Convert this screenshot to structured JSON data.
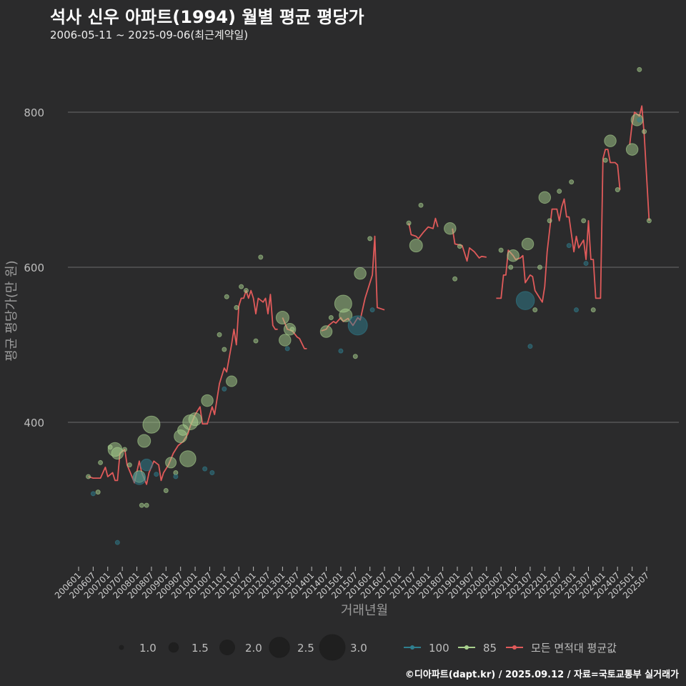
{
  "title": "석사 신우 아파트(1994) 월별 평균 평당가",
  "subtitle": "2006-05-11 ~ 2025-09-06(최근계약일)",
  "caption": "©디아파트(dapt.kr) / 2025.09.12 / 자료=국토교통부 실거래가",
  "colors": {
    "background": "#2b2b2c",
    "grid": "#6b6b6b",
    "series_100": "#2f7f8f",
    "series_85": "#a8d08d",
    "series_avg": "#e05a5a"
  },
  "chart_data": {
    "type": "line+scatter",
    "xlabel": "거래년월",
    "ylabel": "평균 평당가(만 원)",
    "ylim": [
      225,
      860
    ],
    "yticks": [
      400,
      600,
      800
    ],
    "xlim": [
      "2006-01",
      "2025-12"
    ],
    "xticks": [
      "200601",
      "200607",
      "200701",
      "200707",
      "200801",
      "200807",
      "200901",
      "200907",
      "201001",
      "201007",
      "201101",
      "201107",
      "201201",
      "201207",
      "201301",
      "201307",
      "201401",
      "201407",
      "201501",
      "201507",
      "201601",
      "201607",
      "201701",
      "201707",
      "201801",
      "201807",
      "201901",
      "201907",
      "202001",
      "202007",
      "202101",
      "202107",
      "202201",
      "202207",
      "202301",
      "202307",
      "202401",
      "202407",
      "202501",
      "202507"
    ],
    "size_legend": {
      "title": "",
      "values": [
        "1.0",
        "1.5",
        "2.0",
        "2.5",
        "3.0"
      ]
    },
    "line_legend": [
      "100",
      "85",
      "모든 면적대 평균값"
    ],
    "series": [
      {
        "name": "모든 면적대 평균값",
        "type": "line",
        "color_key": "series_avg",
        "segments": [
          [
            [
              "2006-05",
              330
            ],
            [
              "2006-07",
              328
            ],
            [
              "2006-10",
              328
            ],
            [
              "2006-12",
              342
            ],
            [
              "2007-01",
              330
            ],
            [
              "2007-03",
              335
            ],
            [
              "2007-04",
              325
            ],
            [
              "2007-05",
              325
            ],
            [
              "2007-06",
              360
            ],
            [
              "2007-08",
              365
            ],
            [
              "2007-09",
              345
            ],
            [
              "2007-11",
              330
            ],
            [
              "2007-12",
              322
            ],
            [
              "2008-02",
              350
            ],
            [
              "2008-03",
              335
            ],
            [
              "2008-05",
              320
            ],
            [
              "2008-06",
              335
            ],
            [
              "2008-08",
              350
            ],
            [
              "2008-10",
              345
            ],
            [
              "2008-11",
              325
            ],
            [
              "2008-12",
              335
            ],
            [
              "2009-02",
              345
            ],
            [
              "2009-04",
              360
            ],
            [
              "2009-06",
              370
            ],
            [
              "2009-08",
              375
            ],
            [
              "2009-10",
              385
            ],
            [
              "2009-11",
              395
            ],
            [
              "2010-01",
              410
            ],
            [
              "2010-03",
              420
            ],
            [
              "2010-04",
              398
            ],
            [
              "2010-06",
              398
            ],
            [
              "2010-08",
              420
            ],
            [
              "2010-09",
              410
            ],
            [
              "2010-11",
              450
            ],
            [
              "2011-01",
              470
            ],
            [
              "2011-02",
              465
            ],
            [
              "2011-04",
              500
            ],
            [
              "2011-05",
              520
            ],
            [
              "2011-06",
              500
            ],
            [
              "2011-07",
              550
            ],
            [
              "2011-08",
              560
            ],
            [
              "2011-09",
              560
            ],
            [
              "2011-10",
              570
            ],
            [
              "2011-11",
              560
            ],
            [
              "2011-12",
              570
            ],
            [
              "2012-01",
              560
            ],
            [
              "2012-02",
              540
            ],
            [
              "2012-03",
              560
            ],
            [
              "2012-05",
              555
            ],
            [
              "2012-06",
              560
            ],
            [
              "2012-07",
              540
            ],
            [
              "2012-08",
              565
            ],
            [
              "2012-09",
              525
            ],
            [
              "2012-10",
              520
            ],
            [
              "2012-11",
              520
            ]
          ],
          [
            [
              "2013-01",
              535
            ],
            [
              "2013-03",
              520
            ],
            [
              "2013-05",
              518
            ],
            [
              "2013-07",
              510
            ],
            [
              "2013-08",
              508
            ],
            [
              "2013-10",
              495
            ],
            [
              "2013-11",
              495
            ]
          ],
          [
            [
              "2014-05",
              518
            ],
            [
              "2014-07",
              520
            ],
            [
              "2014-08",
              525
            ],
            [
              "2014-10",
              530
            ],
            [
              "2014-11",
              528
            ],
            [
              "2015-01",
              535
            ],
            [
              "2015-02",
              530
            ],
            [
              "2015-04",
              534
            ],
            [
              "2015-06",
              525
            ],
            [
              "2015-08",
              535
            ],
            [
              "2015-09",
              532
            ],
            [
              "2015-11",
              560
            ],
            [
              "2016-01",
              580
            ],
            [
              "2016-02",
              590
            ],
            [
              "2016-03",
              640
            ],
            [
              "2016-04",
              548
            ],
            [
              "2016-07",
              545
            ]
          ],
          [
            [
              "2017-05",
              657
            ],
            [
              "2017-06",
              642
            ],
            [
              "2017-08",
              640
            ],
            [
              "2017-09",
              637
            ],
            [
              "2017-11",
              645
            ],
            [
              "2018-01",
              652
            ],
            [
              "2018-03",
              650
            ],
            [
              "2018-04",
              663
            ],
            [
              "2018-05",
              652
            ]
          ],
          [
            [
              "2018-11",
              650
            ],
            [
              "2018-12",
              630
            ],
            [
              "2019-03",
              628
            ],
            [
              "2019-05",
              608
            ],
            [
              "2019-06",
              625
            ],
            [
              "2019-08",
              620
            ],
            [
              "2019-10",
              612
            ],
            [
              "2019-11",
              614
            ],
            [
              "2020-01",
              613
            ]
          ],
          [
            [
              "2020-05",
              560
            ],
            [
              "2020-07",
              560
            ],
            [
              "2020-08",
              590
            ],
            [
              "2020-09",
              590
            ],
            [
              "2020-10",
              622
            ],
            [
              "2020-12",
              615
            ],
            [
              "2021-01",
              610
            ],
            [
              "2021-03",
              612
            ],
            [
              "2021-04",
              615
            ],
            [
              "2021-05",
              580
            ],
            [
              "2021-07",
              590
            ],
            [
              "2021-08",
              588
            ],
            [
              "2021-09",
              570
            ],
            [
              "2021-10",
              565
            ],
            [
              "2021-12",
              555
            ],
            [
              "2022-01",
              575
            ],
            [
              "2022-02",
              620
            ],
            [
              "2022-04",
              675
            ],
            [
              "2022-06",
              675
            ],
            [
              "2022-07",
              660
            ],
            [
              "2022-08",
              678
            ],
            [
              "2022-09",
              688
            ],
            [
              "2022-10",
              665
            ],
            [
              "2022-11",
              665
            ],
            [
              "2023-01",
              620
            ],
            [
              "2023-02",
              640
            ],
            [
              "2023-03",
              625
            ],
            [
              "2023-05",
              635
            ],
            [
              "2023-06",
              610
            ],
            [
              "2023-07",
              660
            ],
            [
              "2023-08",
              610
            ],
            [
              "2023-09",
              610
            ],
            [
              "2023-10",
              560
            ],
            [
              "2023-12",
              560
            ],
            [
              "2024-01",
              740
            ],
            [
              "2024-02",
              752
            ],
            [
              "2024-03",
              752
            ],
            [
              "2024-04",
              735
            ],
            [
              "2024-06",
              735
            ],
            [
              "2024-07",
              732
            ],
            [
              "2024-08",
              700
            ]
          ],
          [
            [
              "2024-12",
              758
            ],
            [
              "2025-01",
              785
            ],
            [
              "2025-02",
              800
            ],
            [
              "2025-04",
              795
            ],
            [
              "2025-05",
              808
            ],
            [
              "2025-06",
              770
            ],
            [
              "2025-08",
              660
            ]
          ]
        ]
      },
      {
        "name": "85",
        "type": "scatter",
        "color_key": "series_85",
        "points": [
          [
            "2006-05",
            330,
            1.0
          ],
          [
            "2006-10",
            348,
            1.0
          ],
          [
            "2006-09",
            310,
            1.0
          ],
          [
            "2007-02",
            368,
            1.0
          ],
          [
            "2007-04",
            365,
            1.9
          ],
          [
            "2007-05",
            360,
            1.7
          ],
          [
            "2007-08",
            365,
            1.0
          ],
          [
            "2007-10",
            345,
            1.0
          ],
          [
            "2008-02",
            330,
            1.7
          ],
          [
            "2008-04",
            376,
            1.8
          ],
          [
            "2008-07",
            397,
            2.2
          ],
          [
            "2008-03",
            293,
            1.0
          ],
          [
            "2008-05",
            293,
            1.0
          ],
          [
            "2009-01",
            312,
            1.0
          ],
          [
            "2009-03",
            348,
            1.6
          ],
          [
            "2009-05",
            335,
            1.0
          ],
          [
            "2009-07",
            382,
            1.8
          ],
          [
            "2009-08",
            390,
            1.6
          ],
          [
            "2009-10",
            353,
            2.1
          ],
          [
            "2009-11",
            400,
            2.0
          ],
          [
            "2010-01",
            404,
            1.8
          ],
          [
            "2010-06",
            428,
            1.7
          ],
          [
            "2010-11",
            513,
            1.0
          ],
          [
            "2011-01",
            494,
            1.0
          ],
          [
            "2011-02",
            562,
            1.0
          ],
          [
            "2011-04",
            453,
            1.6
          ],
          [
            "2011-06",
            548,
            1.0
          ],
          [
            "2011-08",
            575,
            1.0
          ],
          [
            "2011-10",
            570,
            1.0
          ],
          [
            "2012-02",
            505,
            1.0
          ],
          [
            "2012-04",
            613,
            1.0
          ],
          [
            "2013-01",
            535,
            1.8
          ],
          [
            "2013-02",
            506,
            1.7
          ],
          [
            "2013-04",
            520,
            1.7
          ],
          [
            "2013-05",
            520,
            1.0
          ],
          [
            "2014-07",
            517,
            1.7
          ],
          [
            "2014-09",
            535,
            1.0
          ],
          [
            "2015-02",
            553,
            2.2
          ],
          [
            "2015-03",
            538,
            1.8
          ],
          [
            "2015-07",
            485,
            1.0
          ],
          [
            "2015-09",
            592,
            1.7
          ],
          [
            "2016-01",
            637,
            1.0
          ],
          [
            "2017-05",
            657,
            1.0
          ],
          [
            "2017-08",
            628,
            1.8
          ],
          [
            "2017-10",
            680,
            1.0
          ],
          [
            "2018-10",
            650,
            1.7
          ],
          [
            "2018-12",
            585,
            1.0
          ],
          [
            "2019-02",
            627,
            1.0
          ],
          [
            "2020-07",
            622,
            1.0
          ],
          [
            "2020-11",
            600,
            1.0
          ],
          [
            "2020-12",
            615,
            1.7
          ],
          [
            "2021-06",
            630,
            1.7
          ],
          [
            "2021-09",
            545,
            1.0
          ],
          [
            "2021-11",
            600,
            1.0
          ],
          [
            "2022-01",
            690,
            1.7
          ],
          [
            "2022-03",
            660,
            1.0
          ],
          [
            "2022-07",
            698,
            1.0
          ],
          [
            "2022-12",
            710,
            1.0
          ],
          [
            "2023-05",
            660,
            1.0
          ],
          [
            "2023-09",
            545,
            1.0
          ],
          [
            "2024-02",
            738,
            1.0
          ],
          [
            "2024-04",
            763,
            1.7
          ],
          [
            "2024-07",
            700,
            1.0
          ],
          [
            "2025-01",
            752,
            1.7
          ],
          [
            "2025-03",
            790,
            1.7
          ],
          [
            "2025-04",
            855,
            1.0
          ],
          [
            "2025-06",
            775,
            1.0
          ],
          [
            "2025-08",
            660,
            1.0
          ]
        ]
      },
      {
        "name": "100",
        "type": "scatter",
        "color_key": "series_100",
        "points": [
          [
            "2006-07",
            308,
            1.0
          ],
          [
            "2007-05",
            245,
            1.0
          ],
          [
            "2008-02",
            328,
            1.8
          ],
          [
            "2008-05",
            345,
            1.7
          ],
          [
            "2008-09",
            333,
            1.0
          ],
          [
            "2009-05",
            330,
            1.0
          ],
          [
            "2010-05",
            340,
            1.0
          ],
          [
            "2010-08",
            335,
            1.0
          ],
          [
            "2011-01",
            443,
            1.0
          ],
          [
            "2013-03",
            495,
            1.0
          ],
          [
            "2015-01",
            492,
            1.0
          ],
          [
            "2015-08",
            525,
            2.4
          ],
          [
            "2016-02",
            545,
            1.0
          ],
          [
            "2021-05",
            557,
            2.3
          ],
          [
            "2021-07",
            498,
            1.0
          ],
          [
            "2022-11",
            628,
            1.0
          ],
          [
            "2023-02",
            545,
            1.0
          ],
          [
            "2023-06",
            605,
            1.0
          ],
          [
            "2025-04",
            790,
            1.0
          ]
        ]
      }
    ]
  }
}
